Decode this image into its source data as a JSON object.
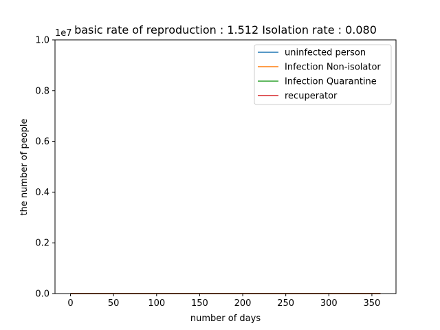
{
  "chart_data": {
    "type": "line",
    "title": "basic rate of reproduction : 1.512  Isolation rate : 0.080",
    "xlabel": "number of days",
    "ylabel": "the number of people",
    "y_scale_label": "1e7",
    "xlim": [
      -18,
      378
    ],
    "ylim": [
      0,
      1.0
    ],
    "x_ticks": [
      0,
      50,
      100,
      150,
      200,
      250,
      300,
      350
    ],
    "x_tick_labels": [
      "0",
      "50",
      "100",
      "150",
      "200",
      "250",
      "300",
      "350"
    ],
    "y_ticks": [
      0.0,
      0.2,
      0.4,
      0.6,
      0.8,
      1.0
    ],
    "y_tick_labels": [
      "0.0",
      "0.2",
      "0.4",
      "0.6",
      "0.8",
      "1.0"
    ],
    "grid": false,
    "legend_position": "top-right",
    "x": [
      0,
      360
    ],
    "series": [
      {
        "name": "uninfected person",
        "color": "#1f77b4",
        "values": [
          0,
          0
        ]
      },
      {
        "name": "Infection Non-isolator",
        "color": "#ff7f0e",
        "values": [
          0,
          0
        ]
      },
      {
        "name": "Infection Quarantine",
        "color": "#2ca02c",
        "values": [
          0,
          0
        ]
      },
      {
        "name": "recuperator",
        "color": "#d62728",
        "values": [
          0,
          0
        ]
      }
    ]
  }
}
